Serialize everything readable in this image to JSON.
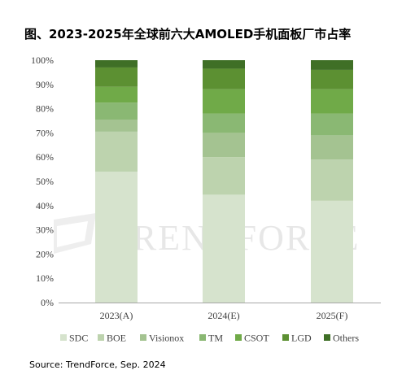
{
  "source": "Source: TrendForce, Sep. 2024",
  "watermark": "TRENDFORCE",
  "chart_data": {
    "type": "bar",
    "stacked": true,
    "title": "图、2023-2025年全球前六大AMOLED手机面板厂市占率",
    "xlabel": "",
    "ylabel": "",
    "categories": [
      "2023(A)",
      "2024(E)",
      "2025(F)"
    ],
    "ylim": [
      0,
      100
    ],
    "yticks": [
      "0%",
      "10%",
      "20%",
      "30%",
      "40%",
      "50%",
      "60%",
      "70%",
      "80%",
      "90%",
      "100%"
    ],
    "grid": false,
    "legend_position": "bottom",
    "series": [
      {
        "name": "SDC",
        "color": "#d6e3cd",
        "values": [
          54,
          44.5,
          42
        ]
      },
      {
        "name": "BOE",
        "color": "#bdd3ae",
        "values": [
          16.5,
          15.5,
          17
        ]
      },
      {
        "name": "Visionox",
        "color": "#a4c391",
        "values": [
          5,
          10,
          10
        ]
      },
      {
        "name": "TM",
        "color": "#8ab873",
        "values": [
          7,
          8,
          9
        ]
      },
      {
        "name": "CSOT",
        "color": "#70aa48",
        "values": [
          6.5,
          10,
          10
        ]
      },
      {
        "name": "LGD",
        "color": "#5c9032",
        "values": [
          8,
          8.5,
          8
        ]
      },
      {
        "name": "Others",
        "color": "#3f6f26",
        "values": [
          3,
          3.5,
          4
        ]
      }
    ]
  }
}
